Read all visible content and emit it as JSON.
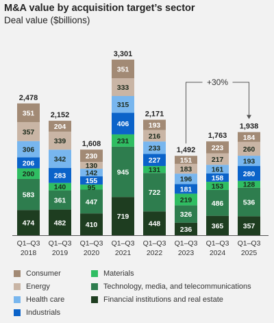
{
  "title": "M&A value by acquisition target’s sector",
  "subtitle": "Deal value ($billions)",
  "chart_data": {
    "type": "bar",
    "stacked": true,
    "categories": [
      [
        "Q1–Q3",
        "2018"
      ],
      [
        "Q1–Q3",
        "2019"
      ],
      [
        "Q1–Q3",
        "2020"
      ],
      [
        "Q1–Q3",
        "2021"
      ],
      [
        "Q1–Q3",
        "2022"
      ],
      [
        "Q1–Q3",
        "2023"
      ],
      [
        "Q1–Q3",
        "2024"
      ],
      [
        "Q1–Q3",
        "2025"
      ]
    ],
    "totals": [
      "2,478",
      "2,152",
      "1,608",
      "3,301",
      "2,171",
      "1,492",
      "1,763",
      "1,938"
    ],
    "series": [
      {
        "name": "Financial institutions and real estate",
        "color": "#1e3d20",
        "values": [
          474,
          482,
          410,
          719,
          448,
          236,
          365,
          357
        ]
      },
      {
        "name": "Technology, media, and telecommunications",
        "color": "#2e7d4e",
        "values": [
          583,
          361,
          447,
          945,
          722,
          326,
          486,
          536
        ]
      },
      {
        "name": "Materials",
        "color": "#2fbd62",
        "values": [
          200,
          140,
          95,
          231,
          131,
          219,
          153,
          128
        ]
      },
      {
        "name": "Industrials",
        "color": "#0b63c9",
        "values": [
          206,
          283,
          155,
          406,
          227,
          181,
          158,
          280
        ]
      },
      {
        "name": "Health care",
        "color": "#78b6ee",
        "values": [
          306,
          342,
          142,
          315,
          233,
          196,
          161,
          193
        ]
      },
      {
        "name": "Energy",
        "color": "#c9b5a5",
        "values": [
          357,
          339,
          130,
          333,
          216,
          183,
          217,
          260
        ]
      },
      {
        "name": "Consumer",
        "color": "#a28a75",
        "values": [
          351,
          204,
          230,
          351,
          193,
          151,
          223,
          184
        ]
      }
    ],
    "annotation": "+30%",
    "legend_order": [
      "Consumer",
      "Materials",
      "Energy",
      "Technology, media, and telecommunications",
      "Health care",
      "Financial institutions and real estate",
      "Industrials"
    ]
  }
}
